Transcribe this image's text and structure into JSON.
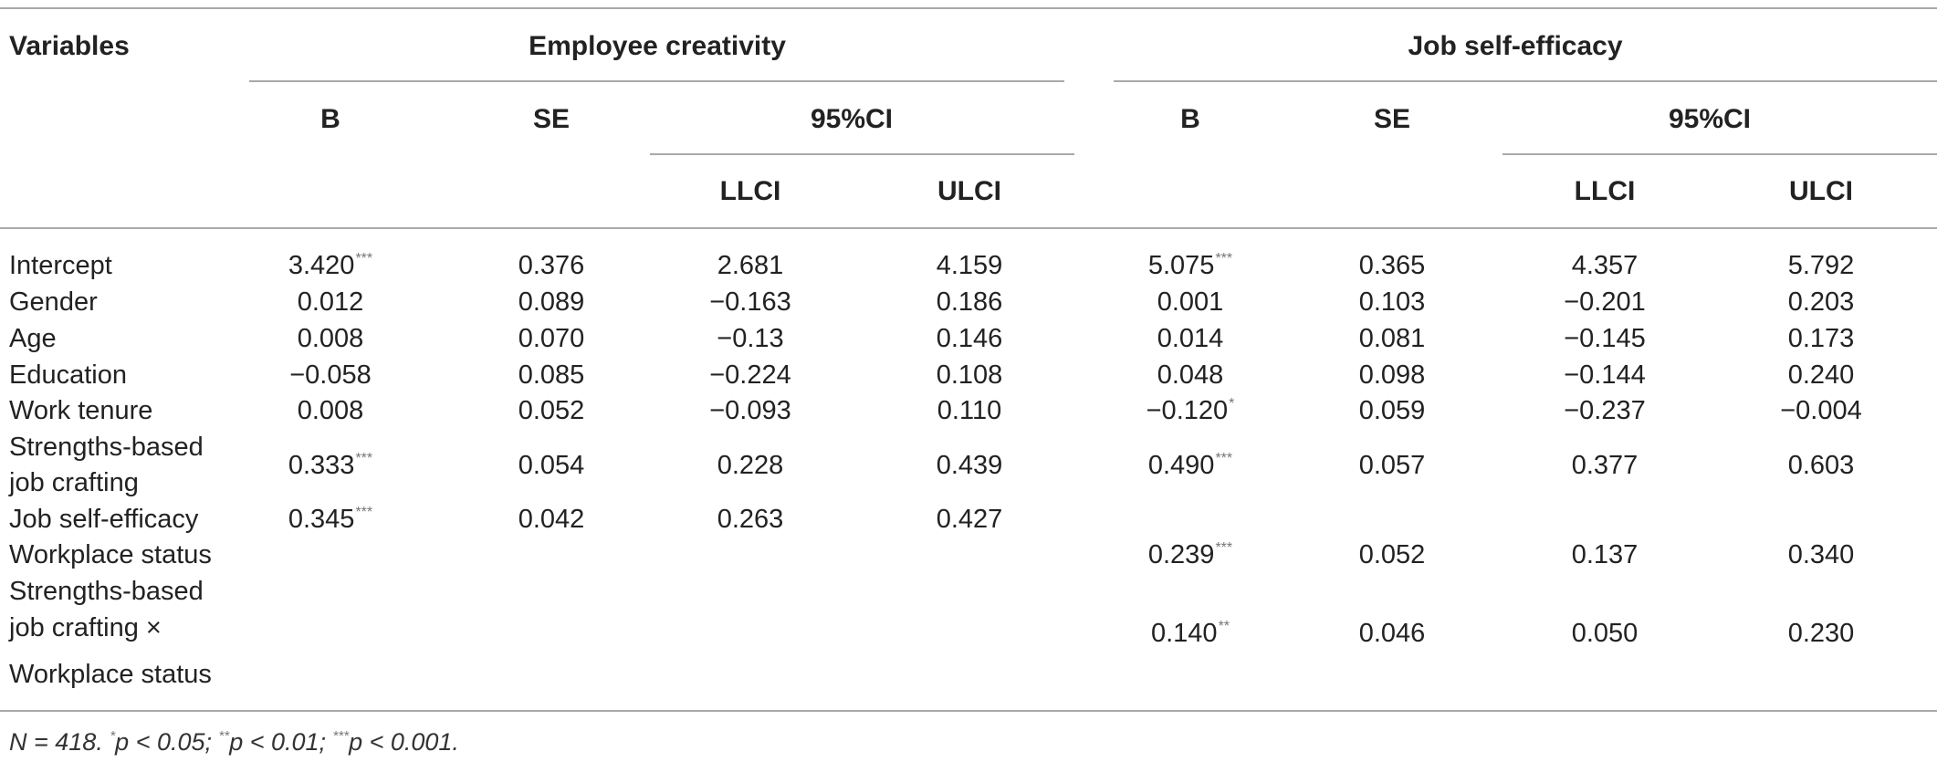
{
  "headers": {
    "variables": "Variables",
    "group1": "Employee creativity",
    "group2": "Job self-efficacy",
    "b": "B",
    "se": "SE",
    "ci": "95%CI",
    "llci": "LLCI",
    "ulci": "ULCI"
  },
  "rows": [
    {
      "label": "Intercept",
      "ec": {
        "b": "3.420",
        "b_sig": "***",
        "se": "0.376",
        "llci": "2.681",
        "ulci": "4.159"
      },
      "jse": {
        "b": "5.075",
        "b_sig": "***",
        "se": "0.365",
        "llci": "4.357",
        "ulci": "5.792"
      }
    },
    {
      "label": "Gender",
      "ec": {
        "b": "0.012",
        "se": "0.089",
        "llci": "−0.163",
        "ulci": "0.186"
      },
      "jse": {
        "b": "0.001",
        "se": "0.103",
        "llci": "−0.201",
        "ulci": "0.203"
      }
    },
    {
      "label": "Age",
      "ec": {
        "b": "0.008",
        "se": "0.070",
        "llci": "−0.13",
        "ulci": "0.146"
      },
      "jse": {
        "b": "0.014",
        "se": "0.081",
        "llci": "−0.145",
        "ulci": "0.173"
      }
    },
    {
      "label": "Education",
      "ec": {
        "b": "−0.058",
        "se": "0.085",
        "llci": "−0.224",
        "ulci": "0.108"
      },
      "jse": {
        "b": "0.048",
        "se": "0.098",
        "llci": "−0.144",
        "ulci": "0.240"
      }
    },
    {
      "label": "Work tenure",
      "ec": {
        "b": "0.008",
        "se": "0.052",
        "llci": "−0.093",
        "ulci": "0.110"
      },
      "jse": {
        "b": "−0.120",
        "b_sig": "*",
        "se": "0.059",
        "llci": "−0.237",
        "ulci": "−0.004"
      }
    },
    {
      "label_lines": [
        "Strengths-based",
        "job crafting"
      ],
      "ec": {
        "b": "0.333",
        "b_sig": "***",
        "se": "0.054",
        "llci": "0.228",
        "ulci": "0.439"
      },
      "jse": {
        "b": "0.490",
        "b_sig": "***",
        "se": "0.057",
        "llci": "0.377",
        "ulci": "0.603"
      }
    },
    {
      "label": "Job self-efficacy",
      "ec": {
        "b": "0.345",
        "b_sig": "***",
        "se": "0.042",
        "llci": "0.263",
        "ulci": "0.427"
      }
    },
    {
      "label": "Workplace status",
      "jse": {
        "b": "0.239",
        "b_sig": "***",
        "se": "0.052",
        "llci": "0.137",
        "ulci": "0.340"
      }
    },
    {
      "label_lines": [
        "Strengths-based",
        "job crafting ×",
        "Workplace status"
      ],
      "jse": {
        "b": "0.140",
        "b_sig": "**",
        "se": "0.046",
        "llci": "0.050",
        "ulci": "0.230"
      }
    }
  ],
  "footnote": {
    "n": "N = 418. ",
    "s1": "*",
    "t1": "p < 0.05; ",
    "s2": "**",
    "t2": "p < 0.01; ",
    "s3": "***",
    "t3": "p < 0.001."
  }
}
